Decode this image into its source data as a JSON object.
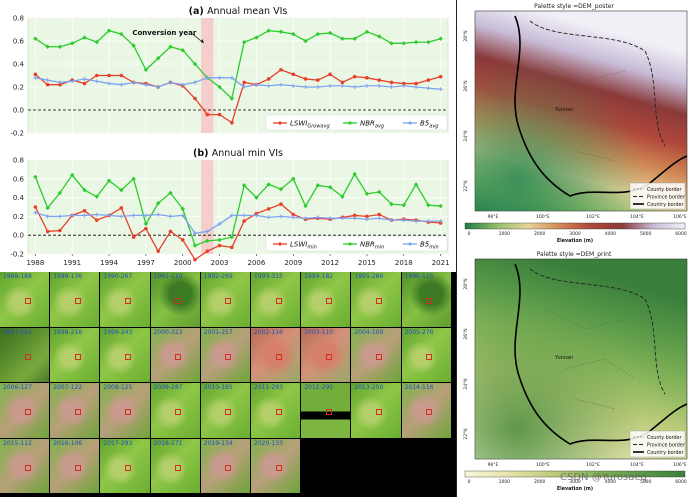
{
  "chart_data": [
    {
      "type": "line",
      "title_prefix": "(a)",
      "title": "Annual mean VIs",
      "annotation": "Conversion year",
      "x": [
        1988,
        1989,
        1990,
        1991,
        1992,
        1993,
        1994,
        1995,
        1996,
        1997,
        1998,
        1999,
        2000,
        2001,
        2002,
        2003,
        2004,
        2005,
        2006,
        2007,
        2008,
        2009,
        2010,
        2011,
        2012,
        2013,
        2014,
        2015,
        2016,
        2017,
        2018,
        2019,
        2020,
        2021
      ],
      "ylim": [
        -0.2,
        0.8
      ],
      "yticks": [
        "0.8",
        "0.6",
        "0.4",
        "0.2",
        "0.0",
        "-0.2"
      ],
      "shaded_x": [
        2001.5,
        2002.5
      ],
      "series": [
        {
          "name": "LSWI",
          "sub": "Growavg",
          "color": "#e8402a",
          "marker": "circle",
          "values": [
            0.31,
            0.22,
            0.22,
            0.26,
            0.23,
            0.3,
            0.3,
            0.3,
            0.24,
            0.23,
            0.2,
            0.24,
            0.21,
            0.1,
            -0.04,
            -0.04,
            -0.11,
            0.24,
            0.22,
            0.27,
            0.35,
            0.31,
            0.27,
            0.26,
            0.31,
            0.24,
            0.29,
            0.28,
            0.26,
            0.24,
            0.23,
            0.23,
            0.26,
            0.29
          ]
        },
        {
          "name": "NBR",
          "sub": "avg",
          "color": "#2ecc2e",
          "marker": "diamond",
          "values": [
            0.62,
            0.55,
            0.55,
            0.58,
            0.63,
            0.59,
            0.69,
            0.66,
            0.56,
            0.35,
            0.45,
            0.55,
            0.52,
            0.4,
            0.28,
            0.2,
            0.1,
            0.59,
            0.63,
            0.69,
            0.68,
            0.66,
            0.6,
            0.66,
            0.67,
            0.62,
            0.62,
            0.68,
            0.64,
            0.58,
            0.58,
            0.59,
            0.59,
            0.62
          ]
        },
        {
          "name": "B5",
          "sub": "avg",
          "color": "#7ea4f0",
          "marker": "plus",
          "values": [
            0.28,
            0.26,
            0.24,
            0.25,
            0.27,
            0.25,
            0.23,
            0.22,
            0.24,
            0.22,
            0.2,
            0.24,
            0.22,
            0.24,
            0.28,
            0.28,
            0.28,
            0.2,
            0.22,
            0.21,
            0.22,
            0.21,
            0.2,
            0.2,
            0.21,
            0.21,
            0.2,
            0.21,
            0.21,
            0.2,
            0.21,
            0.2,
            0.19,
            0.18
          ]
        }
      ]
    },
    {
      "type": "line",
      "title_prefix": "(b)",
      "title": "Annual min VIs",
      "x": [
        1988,
        1989,
        1990,
        1991,
        1992,
        1993,
        1994,
        1995,
        1996,
        1997,
        1998,
        1999,
        2000,
        2001,
        2002,
        2003,
        2004,
        2005,
        2006,
        2007,
        2008,
        2009,
        2010,
        2011,
        2012,
        2013,
        2014,
        2015,
        2016,
        2017,
        2018,
        2019,
        2020,
        2021
      ],
      "xticks": [
        "1988",
        "1991",
        "1994",
        "1997",
        "2000",
        "2003",
        "2006",
        "2009",
        "2012",
        "2015",
        "2018",
        "2021"
      ],
      "ylim": [
        -0.2,
        0.8
      ],
      "yticks": [
        "0.8",
        "0.6",
        "0.4",
        "0.2",
        "0.0",
        "-0.2"
      ],
      "shaded_x": [
        2001.5,
        2002.5
      ],
      "series": [
        {
          "name": "LSWI",
          "sub": "min",
          "color": "#e8402a",
          "marker": "circle",
          "values": [
            0.3,
            0.04,
            0.05,
            0.21,
            0.26,
            0.16,
            0.21,
            0.29,
            -0.02,
            0.07,
            -0.17,
            0.04,
            -0.05,
            -0.26,
            -0.17,
            -0.11,
            -0.13,
            0.15,
            0.23,
            0.28,
            0.33,
            0.22,
            0.17,
            0.18,
            0.17,
            0.19,
            0.21,
            0.2,
            0.22,
            0.16,
            0.17,
            0.16,
            0.14,
            0.13
          ]
        },
        {
          "name": "NBR",
          "sub": "min",
          "color": "#2ecc2e",
          "marker": "diamond",
          "values": [
            0.62,
            0.29,
            0.45,
            0.64,
            0.48,
            0.41,
            0.58,
            0.48,
            0.6,
            0.12,
            0.34,
            0.45,
            0.28,
            -0.11,
            -0.06,
            -0.05,
            -0.02,
            0.53,
            0.4,
            0.54,
            0.49,
            0.6,
            0.31,
            0.53,
            0.51,
            0.41,
            0.65,
            0.44,
            0.46,
            0.33,
            0.32,
            0.54,
            0.32,
            0.31
          ]
        },
        {
          "name": "B5",
          "sub": "min",
          "color": "#7ea4f0",
          "marker": "plus",
          "values": [
            0.24,
            0.2,
            0.2,
            0.21,
            0.21,
            0.22,
            0.21,
            0.2,
            0.21,
            0.21,
            0.22,
            0.2,
            0.21,
            0.02,
            0.04,
            0.12,
            0.21,
            0.21,
            0.21,
            0.19,
            0.2,
            0.19,
            0.18,
            0.19,
            0.18,
            0.18,
            0.18,
            0.17,
            0.18,
            0.16,
            0.16,
            0.15,
            0.15,
            0.15
          ]
        }
      ]
    }
  ],
  "tiles": [
    {
      "label": "1988-188",
      "tone": "g"
    },
    {
      "label": "1989-136",
      "tone": "g"
    },
    {
      "label": "1990-267",
      "tone": "g"
    },
    {
      "label": "1991-110",
      "tone": "gd"
    },
    {
      "label": "1992-269",
      "tone": "g"
    },
    {
      "label": "1993-315",
      "tone": "g"
    },
    {
      "label": "1994-182",
      "tone": "g"
    },
    {
      "label": "1995-286",
      "tone": "g"
    },
    {
      "label": "1996-115",
      "tone": "gd"
    },
    {
      "label": "1997-261",
      "tone": "dk"
    },
    {
      "label": "1998-216",
      "tone": "g"
    },
    {
      "label": "1999-243",
      "tone": "g"
    },
    {
      "label": "2000-323",
      "tone": "p"
    },
    {
      "label": "2001-257",
      "tone": "p"
    },
    {
      "label": "2002-116",
      "tone": "r"
    },
    {
      "label": "2003-110",
      "tone": "r"
    },
    {
      "label": "2004-109",
      "tone": "p"
    },
    {
      "label": "2005-276",
      "tone": "g"
    },
    {
      "label": "2006-127",
      "tone": "p"
    },
    {
      "label": "2007-122",
      "tone": "p"
    },
    {
      "label": "2008-125",
      "tone": "p"
    },
    {
      "label": "2009-287",
      "tone": "g"
    },
    {
      "label": "2010-185",
      "tone": "g"
    },
    {
      "label": "2011-293",
      "tone": "g"
    },
    {
      "label": "2012-295",
      "tone": "gx"
    },
    {
      "label": "2013-250",
      "tone": "g"
    },
    {
      "label": "2014-116",
      "tone": "p"
    },
    {
      "label": "2015-112",
      "tone": "p"
    },
    {
      "label": "2016-106",
      "tone": "p"
    },
    {
      "label": "2017-293",
      "tone": "g"
    },
    {
      "label": "2018-271",
      "tone": "g"
    },
    {
      "label": "2019-134",
      "tone": "p"
    },
    {
      "label": "2020-133",
      "tone": "p"
    }
  ],
  "maps": [
    {
      "title": "Palette style =DEM_poster",
      "place": "Yunnan",
      "legend": [
        "County border",
        "Province border",
        "Country border"
      ],
      "xticks": [
        "96°E",
        "100°E",
        "102°E",
        "104°E",
        "106°E"
      ],
      "yticks": [
        "28°N",
        "26°N",
        "24°N",
        "22°N"
      ],
      "cbar_ticks": [
        "0",
        "1000",
        "2000",
        "3000",
        "4000",
        "5000",
        "6000"
      ],
      "cbar_label": "Elevation (m)",
      "colors": [
        "#1f7a4a",
        "#8fbf66",
        "#e8d49a",
        "#d08a56",
        "#b0473a",
        "#8a3a3a",
        "#c8bcd8",
        "#f2f0f6"
      ]
    },
    {
      "title": "Palette style =DEM_print",
      "place": "Yunnan",
      "legend": [
        "County border",
        "Province border",
        "Country border"
      ],
      "xticks": [
        "96°E",
        "100°E",
        "102°E",
        "104°E",
        "106°E"
      ],
      "yticks": [
        "28°N",
        "26°N",
        "24°N",
        "22°N"
      ],
      "cbar_ticks": [
        "0",
        "1000",
        "2000",
        "3000",
        "4000",
        "5000",
        "6000"
      ],
      "cbar_label": "Elevation (m)",
      "colors": [
        "#f8f8e0",
        "#e6e2a8",
        "#bccb7a",
        "#86b45a",
        "#5a9a48",
        "#3a7f3c"
      ]
    }
  ],
  "watermark": "CSDN @Yurosaeq"
}
